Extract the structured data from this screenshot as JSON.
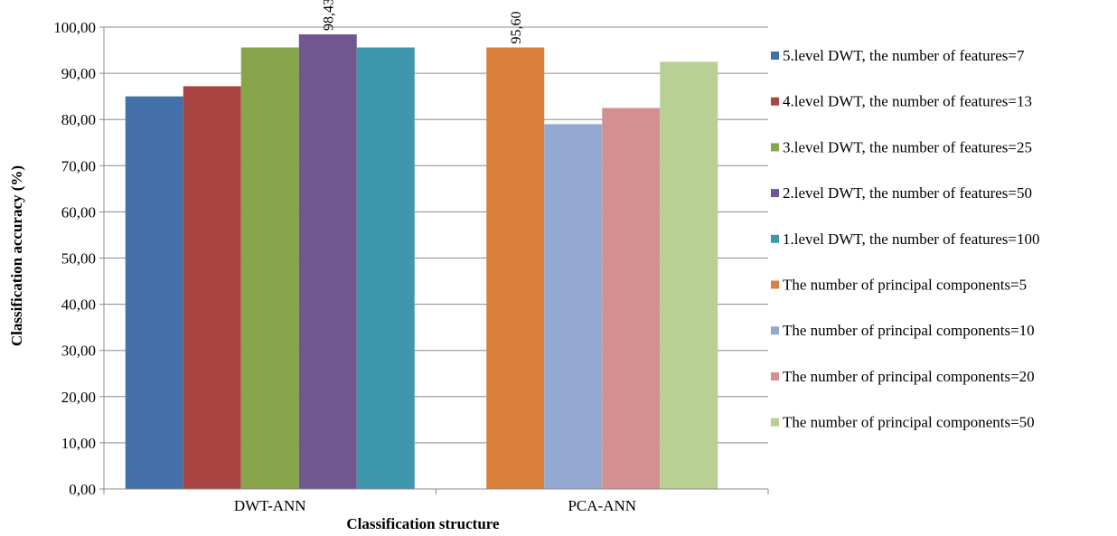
{
  "chart_data": {
    "type": "bar",
    "title": "",
    "xlabel": "Classification structure",
    "ylabel": "Classification accuracy (%)",
    "ylim": [
      0,
      100
    ],
    "yticks": [
      "0,00",
      "10,00",
      "20,00",
      "30,00",
      "40,00",
      "50,00",
      "60,00",
      "70,00",
      "80,00",
      "90,00",
      "100,00"
    ],
    "grid": true,
    "legend_position": "right",
    "groups": [
      {
        "category": "DWT-ANN",
        "series": [
          {
            "name": "5.level DWT, the number of features=7",
            "value": 85.0,
            "color": "#4370a8"
          },
          {
            "name": "4.level DWT, the number of features=13",
            "value": 87.2,
            "color": "#a94542"
          },
          {
            "name": "3.level DWT, the number of features=25",
            "value": 95.6,
            "color": "#88a54c"
          },
          {
            "name": "2.level DWT, the number of features=50",
            "value": 98.43,
            "color": "#71578f",
            "label": "98,43"
          },
          {
            "name": "1.level DWT, the number of features=100",
            "value": 95.6,
            "color": "#3f97ae"
          }
        ]
      },
      {
        "category": "PCA-ANN",
        "series": [
          {
            "name": "The number of principal components=5",
            "value": 95.6,
            "color": "#d9813c",
            "label": "95,60"
          },
          {
            "name": "The number of principal components=10",
            "value": 79.0,
            "color": "#94a9d1"
          },
          {
            "name": "The number of principal components=20",
            "value": 82.5,
            "color": "#d29190"
          },
          {
            "name": "The number of principal components=50",
            "value": 92.5,
            "color": "#b8d093"
          }
        ]
      }
    ]
  }
}
